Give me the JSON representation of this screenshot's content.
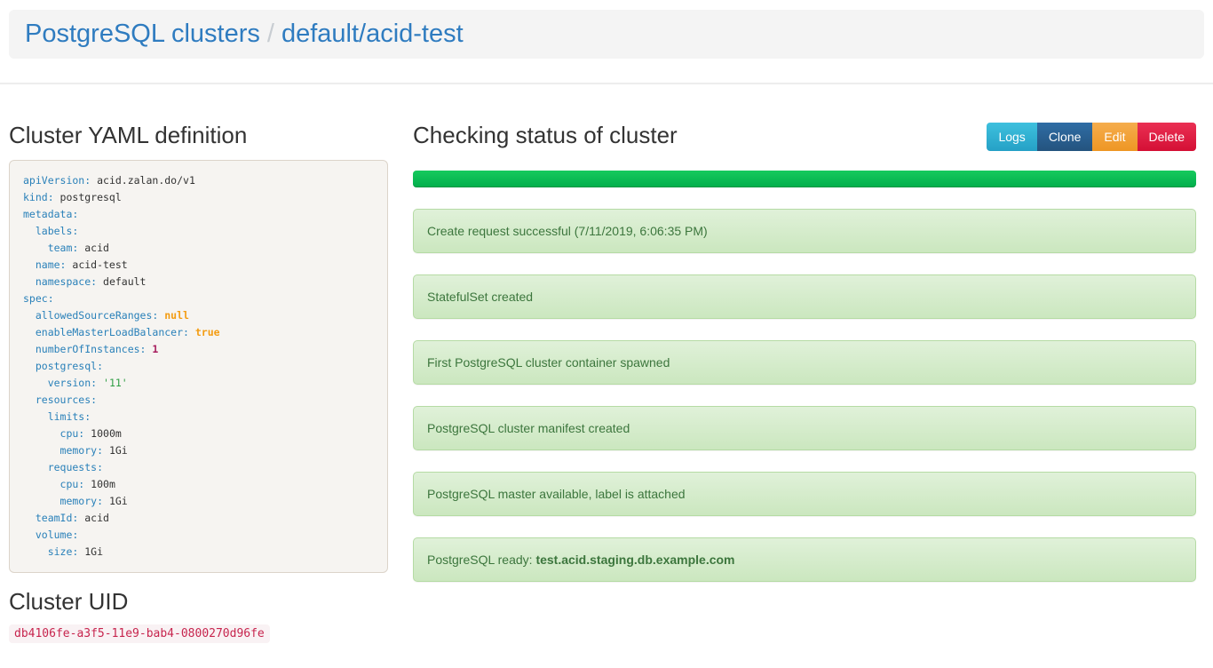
{
  "header": {
    "breadcrumb": {
      "root": "PostgreSQL clusters",
      "separator": "/",
      "current": "default/acid-test"
    }
  },
  "left": {
    "yaml_title": "Cluster YAML definition",
    "yaml": {
      "lines": [
        {
          "k": "apiVersion: ",
          "v": "acid.zalan.do/v1",
          "t": "plain"
        },
        {
          "k": "kind: ",
          "v": "postgresql",
          "t": "plain"
        },
        {
          "k": "metadata:",
          "v": "",
          "t": "plain"
        },
        {
          "k": "  labels:",
          "v": "",
          "t": "plain"
        },
        {
          "k": "    team: ",
          "v": "acid",
          "t": "plain"
        },
        {
          "k": "  name: ",
          "v": "acid-test",
          "t": "plain"
        },
        {
          "k": "  namespace: ",
          "v": "default",
          "t": "plain"
        },
        {
          "k": "spec:",
          "v": "",
          "t": "plain"
        },
        {
          "k": "  allowedSourceRanges: ",
          "v": "null",
          "t": "literal"
        },
        {
          "k": "  enableMasterLoadBalancer: ",
          "v": "true",
          "t": "literal"
        },
        {
          "k": "  numberOfInstances: ",
          "v": "1",
          "t": "number"
        },
        {
          "k": "  postgresql:",
          "v": "",
          "t": "plain"
        },
        {
          "k": "    version: ",
          "v": "'11'",
          "t": "string"
        },
        {
          "k": "  resources:",
          "v": "",
          "t": "plain"
        },
        {
          "k": "    limits:",
          "v": "",
          "t": "plain"
        },
        {
          "k": "      cpu: ",
          "v": "1000m",
          "t": "plain"
        },
        {
          "k": "      memory: ",
          "v": "1Gi",
          "t": "plain"
        },
        {
          "k": "    requests:",
          "v": "",
          "t": "plain"
        },
        {
          "k": "      cpu: ",
          "v": "100m",
          "t": "plain"
        },
        {
          "k": "      memory: ",
          "v": "1Gi",
          "t": "plain"
        },
        {
          "k": "  teamId: ",
          "v": "acid",
          "t": "plain"
        },
        {
          "k": "  volume:",
          "v": "",
          "t": "plain"
        },
        {
          "k": "    size: ",
          "v": "1Gi",
          "t": "plain"
        }
      ]
    },
    "uid_title": "Cluster UID",
    "uid_value": "db4106fe-a3f5-11e9-bab4-0800270d96fe"
  },
  "status": {
    "title": "Checking status of cluster",
    "progress_percent": 100,
    "progress_color": "#0bbf53",
    "alerts": [
      {
        "text": "Create request successful (7/11/2019, 6:06:35 PM)"
      },
      {
        "text": "StatefulSet created"
      },
      {
        "text": "First PostgreSQL cluster container spawned"
      },
      {
        "text": "PostgreSQL cluster manifest created"
      },
      {
        "text": "PostgreSQL master available, label is attached"
      },
      {
        "text": "PostgreSQL ready: ",
        "bold": "test.acid.staging.db.example.com"
      }
    ]
  },
  "toolbar": {
    "buttons": [
      {
        "label": "Logs",
        "color": "#30b2d4"
      },
      {
        "label": "Clone",
        "color": "#2a6095"
      },
      {
        "label": "Edit",
        "color": "#f2a43b"
      },
      {
        "label": "Delete",
        "color": "#df2044"
      }
    ]
  },
  "colors": {
    "link_blue": "#2f7cc0",
    "alert_bg_top": "#e0f1d9",
    "alert_bg_bottom": "#cbe7bf",
    "alert_text": "#3c763d",
    "yaml_key": "#2980b9",
    "uid_text": "#c7254e"
  }
}
